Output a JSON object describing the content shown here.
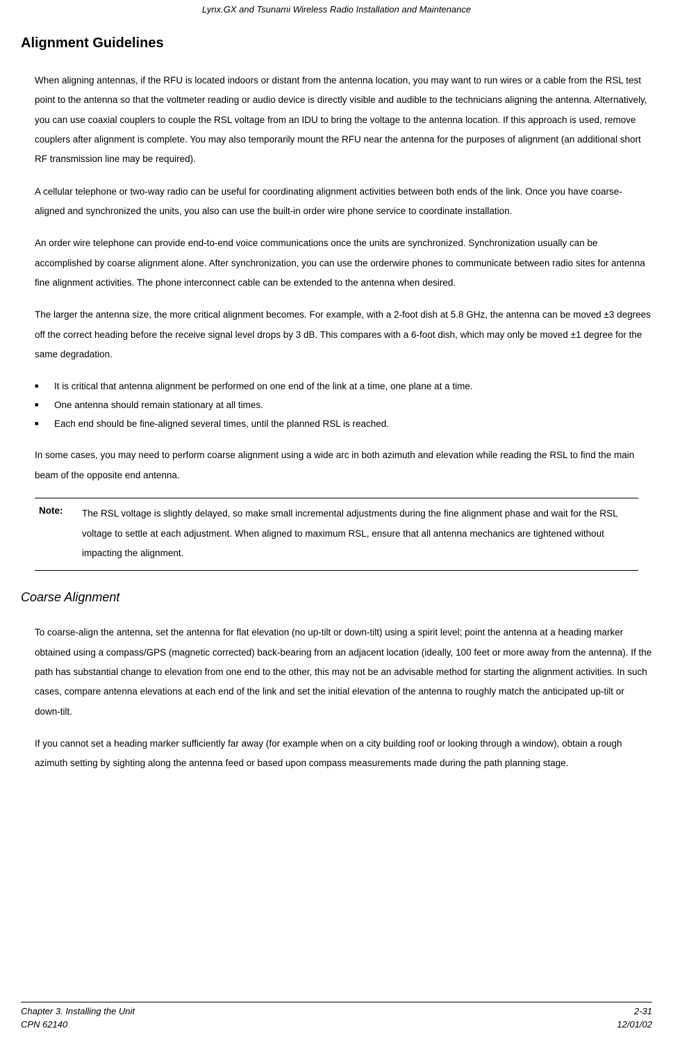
{
  "header": {
    "running_title": "Lynx.GX and Tsunami Wireless Radio Installation and Maintenance"
  },
  "section": {
    "heading": "Alignment Guidelines",
    "paras": [
      "When aligning antennas, if the RFU is located indoors or distant from the antenna location, you may want to run wires or a cable from the RSL test point to the antenna so that the voltmeter reading or audio device is directly visible and audible to the technicians aligning the antenna.  Alternatively, you can use coaxial couplers to couple the RSL voltage from an IDU to bring the voltage to the antenna location.  If this approach is used, remove couplers after alignment is complete. You may also temporarily mount the RFU near the antenna for the purposes of alignment (an additional short RF transmission line may be required).",
      "A cellular telephone or two-way radio can be useful for coordinating alignment activities between both ends of the link.  Once you have coarse-aligned and synchronized the units, you also can use the built-in order wire phone service to coordinate installation.",
      "An order wire telephone can provide end-to-end voice communications once the units are synchronized. Synchronization usually can be accomplished by coarse alignment alone.  After synchronization, you can use the orderwire phones to communicate between radio sites for antenna fine alignment activities.  The phone interconnect cable can be extended to the antenna when desired.",
      "The larger the antenna size, the more critical alignment becomes. For example, with a 2-foot dish at 5.8 GHz, the antenna can be moved ±3 degrees off the correct heading before the receive signal level drops by 3 dB. This compares with a 6-foot dish, which may only be moved ±1 degree for the same degradation."
    ],
    "bullets": [
      "It is critical that antenna alignment be performed on one end of the link at a time, one plane at a time.",
      "One antenna should remain stationary at all times.",
      "Each end should be fine-aligned several times, until the planned RSL is reached."
    ],
    "para_after_bullets": "In some cases, you may need to perform coarse alignment using a wide arc in both azimuth and elevation while reading the RSL to find the main beam of the opposite end antenna.",
    "note": {
      "label": "Note:",
      "text": "The RSL voltage is slightly delayed, so make small incremental adjustments during the fine alignment phase and wait for the RSL voltage to settle at each adjustment.  When aligned to maximum RSL, ensure that all antenna mechanics are tightened without impacting the alignment."
    }
  },
  "subsection": {
    "heading": "Coarse Alignment",
    "paras": [
      "To coarse-align the antenna, set the antenna for flat elevation (no up-tilt or down-tilt) using a spirit level; point the antenna at a heading marker obtained using a compass/GPS (magnetic corrected) back-bearing from an adjacent location (ideally, 100 feet or more away from the antenna).  If the path has substantial change to elevation from one end to the other, this may not be an advisable method for starting the alignment activities.  In such cases, compare antenna elevations at each end of the link and set the initial elevation of the antenna to roughly match the anticipated up-tilt or down-tilt.",
      "If you cannot set a heading marker sufficiently far away (for example when on a city building roof or looking through a window), obtain a rough azimuth setting by sighting along the antenna feed or based upon compass measurements made during the path planning stage."
    ]
  },
  "footer": {
    "left_line1": "Chapter 3. Installing the Unit",
    "left_line2": "CPN  62140",
    "right_line1": "2-31",
    "right_line2": "12/01/02"
  }
}
